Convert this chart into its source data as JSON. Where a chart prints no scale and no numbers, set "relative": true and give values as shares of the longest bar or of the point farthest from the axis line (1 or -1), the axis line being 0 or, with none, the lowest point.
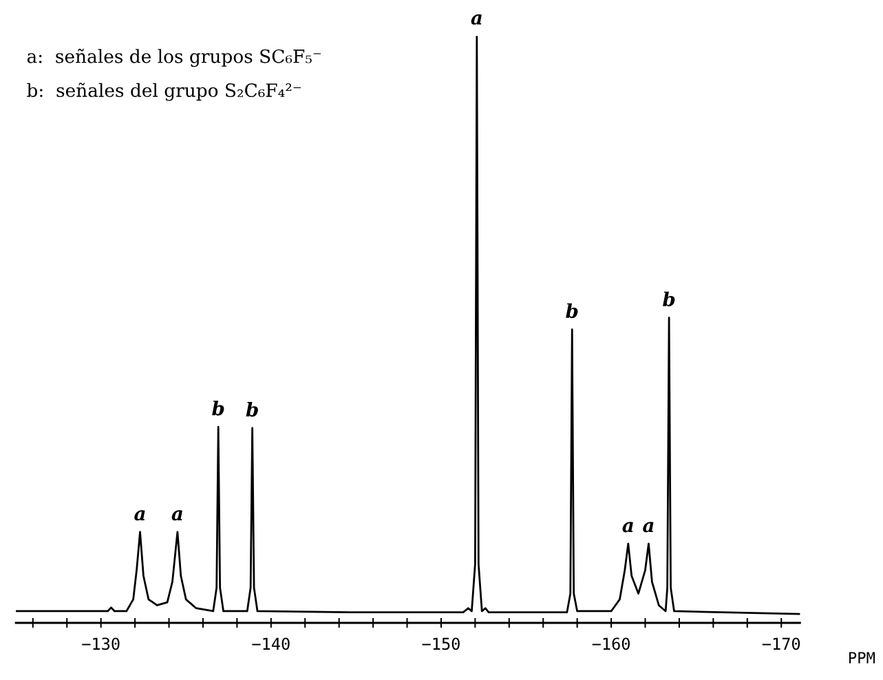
{
  "chart_data": {
    "type": "line",
    "relative": true,
    "xlabel": "PPM",
    "xlim": [
      -125,
      -171.1
    ],
    "xticks": [
      {
        "value": -126,
        "label": null
      },
      {
        "value": -128,
        "label": null
      },
      {
        "value": -130,
        "label": "−130"
      },
      {
        "value": -132,
        "label": null
      },
      {
        "value": -134,
        "label": null
      },
      {
        "value": -136,
        "label": null
      },
      {
        "value": -138,
        "label": null
      },
      {
        "value": -140,
        "label": "−140"
      },
      {
        "value": -142,
        "label": null
      },
      {
        "value": -144,
        "label": null
      },
      {
        "value": -146,
        "label": null
      },
      {
        "value": -148,
        "label": null
      },
      {
        "value": -150,
        "label": "−150"
      },
      {
        "value": -152,
        "label": null
      },
      {
        "value": -154,
        "label": null
      },
      {
        "value": -156,
        "label": null
      },
      {
        "value": -158,
        "label": null
      },
      {
        "value": -160,
        "label": "−160"
      },
      {
        "value": -162,
        "label": null
      },
      {
        "value": -164,
        "label": null
      },
      {
        "value": -166,
        "label": null
      },
      {
        "value": -168,
        "label": null
      },
      {
        "value": -170,
        "label": "−170"
      }
    ],
    "x": [
      -125,
      -130.4,
      -130.6,
      -130.8,
      -131.5,
      -131.9,
      -132.1,
      -132.3,
      -132.5,
      -132.8,
      -133.3,
      -133.9,
      -134.2,
      -134.5,
      -134.7,
      -135.0,
      -135.6,
      -136.6,
      -136.8,
      -136.9,
      -137.0,
      -137.2,
      -138.0,
      -138.6,
      -138.8,
      -138.9,
      -139.0,
      -139.2,
      -145,
      -151.3,
      -151.6,
      -151.8,
      -152.0,
      -152.1,
      -152.2,
      -152.4,
      -152.6,
      -152.8,
      -157.4,
      -157.6,
      -157.7,
      -157.8,
      -158.0,
      -160.0,
      -160.5,
      -160.8,
      -161.0,
      -161.2,
      -161.6,
      -162.0,
      -162.2,
      -162.4,
      -162.8,
      -163.2,
      -163.3,
      -163.4,
      -163.5,
      -163.7,
      -171.1
    ],
    "series": [
      {
        "color": "#000000",
        "values": [
          0.02,
          0.02,
          0.026,
          0.02,
          0.02,
          0.04,
          0.09,
          0.155,
          0.08,
          0.04,
          0.03,
          0.035,
          0.07,
          0.155,
          0.08,
          0.04,
          0.025,
          0.02,
          0.06,
          0.334,
          0.06,
          0.02,
          0.02,
          0.02,
          0.06,
          0.332,
          0.06,
          0.02,
          0.018,
          0.018,
          0.025,
          0.02,
          0.1,
          1.0,
          0.1,
          0.02,
          0.025,
          0.018,
          0.018,
          0.05,
          0.5,
          0.05,
          0.02,
          0.02,
          0.04,
          0.09,
          0.135,
          0.08,
          0.05,
          0.09,
          0.135,
          0.07,
          0.03,
          0.02,
          0.06,
          0.52,
          0.06,
          0.02,
          0.015
        ]
      }
    ],
    "annotations": [
      "a:  señales de los grupos SC₆F₅⁻",
      "b:  señales del grupo S₂C₆F₄²⁻",
      {
        "text": "a",
        "x": -132.3,
        "y": 0.155
      },
      {
        "text": "a",
        "x": -134.5,
        "y": 0.155
      },
      {
        "text": "b",
        "x": -136.9,
        "y": 0.334
      },
      {
        "text": "b",
        "x": -138.9,
        "y": 0.332
      },
      {
        "text": "a",
        "x": -152.1,
        "y": 1.0
      },
      {
        "text": "b",
        "x": -157.7,
        "y": 0.5
      },
      {
        "text": "a",
        "x": -161.0,
        "y": 0.135
      },
      {
        "text": "a",
        "x": -162.2,
        "y": 0.135
      },
      {
        "text": "b",
        "x": -163.4,
        "y": 0.52
      }
    ]
  }
}
